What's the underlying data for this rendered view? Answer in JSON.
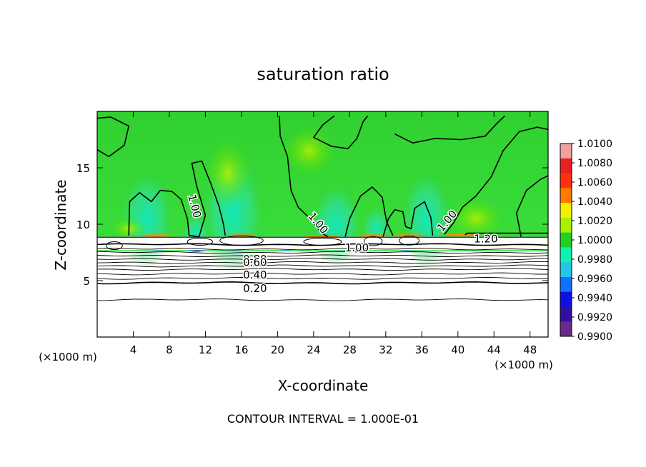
{
  "chart_data": {
    "type": "heatmap",
    "title": "saturation ratio",
    "xlabel": "X-coordinate",
    "ylabel": "Z-coordinate",
    "x_unit_left": "(×1000 m)",
    "x_unit_right": "(×1000 m)",
    "xlim": [
      0,
      50
    ],
    "ylim": [
      0,
      20
    ],
    "x_ticks": [
      4,
      8,
      12,
      16,
      20,
      24,
      28,
      32,
      36,
      40,
      44,
      48
    ],
    "y_ticks": [
      5,
      10,
      15
    ],
    "footer": "CONTOUR INTERVAL = 1.000E-01",
    "colorbar": {
      "range": [
        0.99,
        1.01
      ],
      "labels": [
        "1.0100",
        "1.0080",
        "1.0060",
        "1.0040",
        "1.0020",
        "1.0000",
        "0.9980",
        "0.9960",
        "0.9940",
        "0.9920",
        "0.9900"
      ],
      "colors": [
        "#f0a0a0",
        "#e82020",
        "#ff3010",
        "#ff7a00",
        "#f0f000",
        "#a8f000",
        "#22d022",
        "#10f0b0",
        "#20c8e8",
        "#1070ff",
        "#1010e0",
        "#3010a0",
        "#6a2a8a"
      ]
    },
    "contour_labels": [
      {
        "text": "1.00",
        "x": 10.8,
        "y": 11.6,
        "rot": 75
      },
      {
        "text": "1.00",
        "x": 24.5,
        "y": 10.1,
        "rot": 50
      },
      {
        "text": "1.00",
        "x": 38.8,
        "y": 10.3,
        "rot": -50
      },
      {
        "text": "1.00",
        "x": 28.8,
        "y": 7.9,
        "rot": 0
      },
      {
        "text": "1.20",
        "x": 43.1,
        "y": 8.7,
        "rot": 0
      },
      {
        "text": "0.80",
        "x": 17.5,
        "y": 6.9,
        "rot": 0
      },
      {
        "text": "0.60",
        "x": 17.5,
        "y": 6.6,
        "rot": 0
      },
      {
        "text": "0.40",
        "x": 17.5,
        "y": 5.5,
        "rot": 0
      },
      {
        "text": "0.20",
        "x": 17.5,
        "y": 4.3,
        "rot": 0
      }
    ],
    "stable_layer_contours": [
      8.2,
      7.8,
      7.5,
      7.2,
      6.9,
      6.6,
      6.3,
      6.0,
      5.6,
      5.2,
      4.8,
      3.3
    ],
    "cloud_top_z": 8.9
  }
}
